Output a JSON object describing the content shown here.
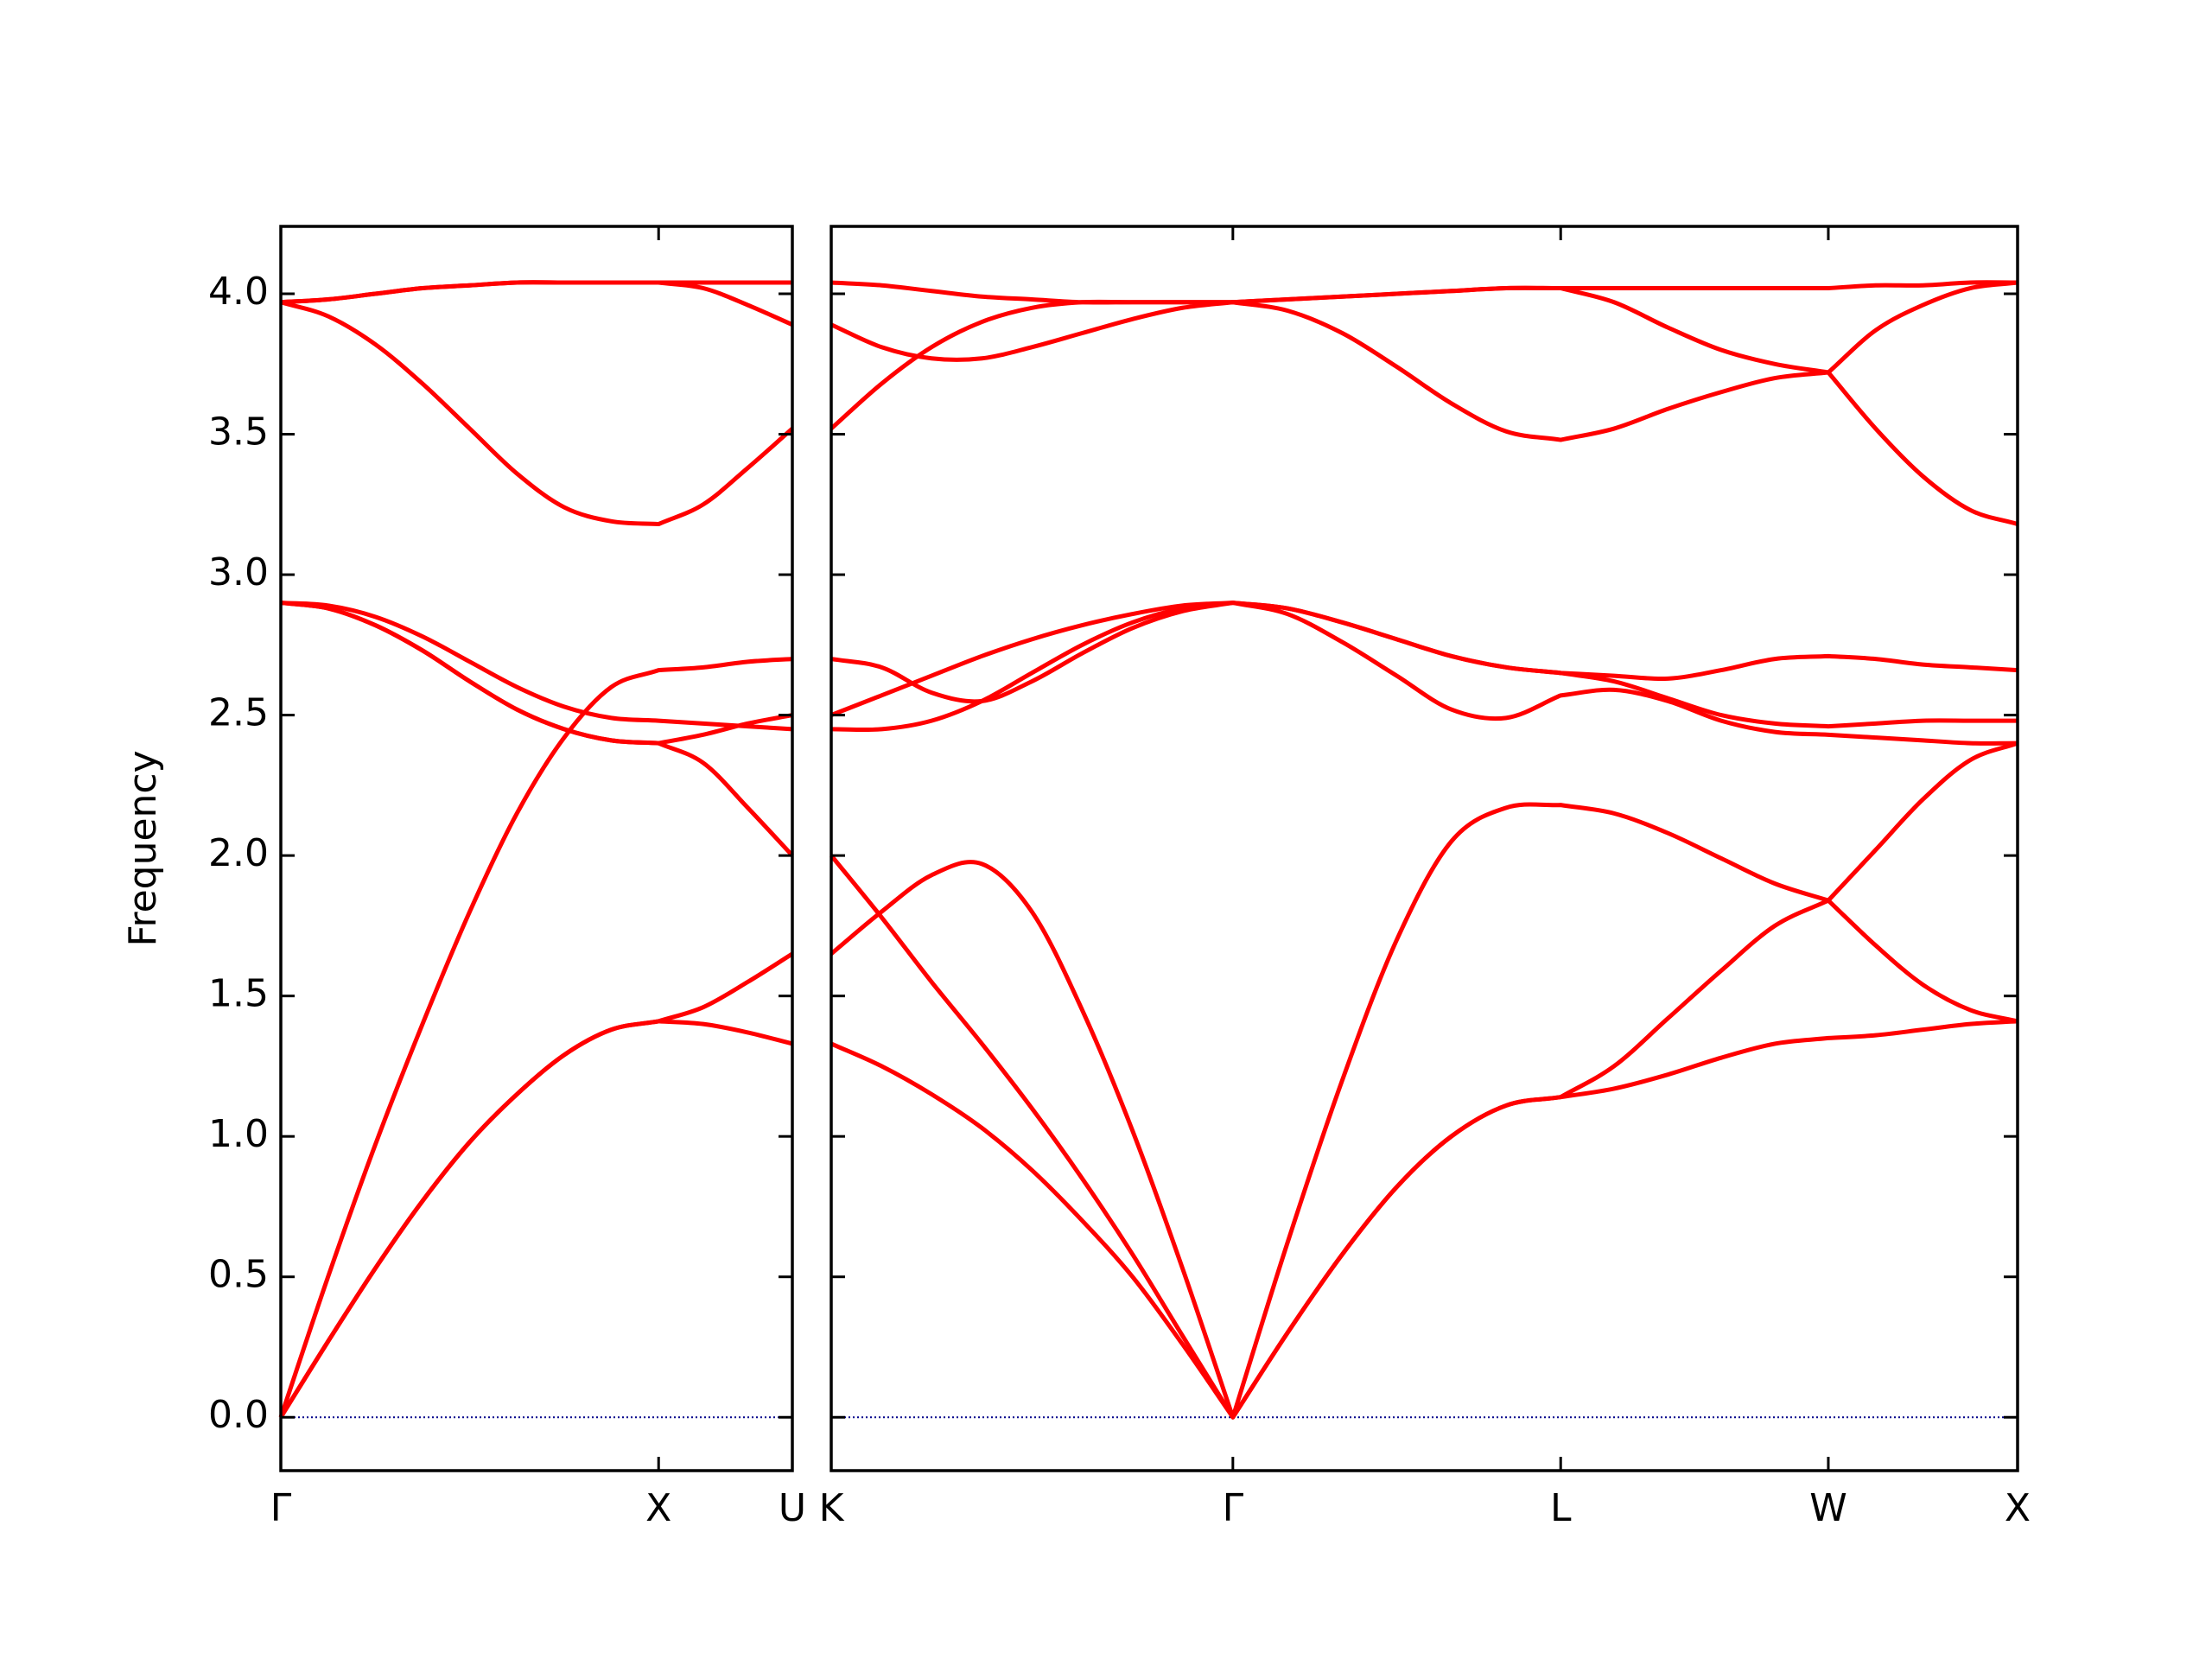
{
  "chart_data": [
    {
      "type": "line",
      "ylabel": "Frequency",
      "color": "#ff0000",
      "hline": 0,
      "hline_color": "#00008b",
      "ylim": [
        -0.19,
        4.24
      ],
      "yticks": [
        {
          "value": 0,
          "label": "0.0"
        },
        0.5,
        {
          "value": 1,
          "label": "1.0"
        },
        1.5,
        {
          "value": 2,
          "label": "2.0"
        },
        2.5,
        {
          "value": 3,
          "label": "3.0"
        },
        3.5,
        {
          "value": 4,
          "label": "4.0"
        }
      ],
      "xlim": [
        0,
        1.354
      ],
      "xticks": [
        {
          "value": 0,
          "label": "Γ"
        },
        {
          "value": 1,
          "label": "X"
        },
        {
          "value": 1.354,
          "label": "U"
        }
      ],
      "x": [
        0,
        0.125,
        0.25,
        0.375,
        0.5,
        0.625,
        0.75,
        0.875,
        1.0,
        1.118,
        1.236,
        1.354
      ],
      "series": [
        {
          "values": [
            0,
            0.27,
            0.53,
            0.77,
            0.98,
            1.15,
            1.29,
            1.38,
            1.41,
            1.4,
            1.37,
            1.33
          ]
        },
        {
          "values": [
            0,
            0.27,
            0.53,
            0.77,
            0.98,
            1.15,
            1.29,
            1.38,
            1.41,
            1.46,
            1.55,
            1.65
          ]
        },
        {
          "values": [
            0,
            0.5,
            0.97,
            1.4,
            1.8,
            2.15,
            2.42,
            2.6,
            2.66,
            2.67,
            2.69,
            2.7
          ]
        },
        {
          "values": [
            2.9,
            2.88,
            2.82,
            2.73,
            2.62,
            2.52,
            2.45,
            2.41,
            2.4,
            2.33,
            2.17,
            2.0
          ]
        },
        {
          "values": [
            2.9,
            2.88,
            2.82,
            2.73,
            2.62,
            2.52,
            2.45,
            2.41,
            2.4,
            2.43,
            2.47,
            2.5
          ]
        },
        {
          "values": [
            2.9,
            2.89,
            2.85,
            2.78,
            2.69,
            2.6,
            2.53,
            2.49,
            2.48,
            2.47,
            2.46,
            2.45
          ]
        },
        {
          "values": [
            3.97,
            3.92,
            3.82,
            3.68,
            3.52,
            3.36,
            3.24,
            3.19,
            3.18,
            3.25,
            3.38,
            3.52
          ]
        },
        {
          "values": [
            3.97,
            3.98,
            4.0,
            4.02,
            4.03,
            4.04,
            4.04,
            4.04,
            4.04,
            4.04,
            4.04,
            4.04
          ]
        },
        {
          "values": [
            3.97,
            3.98,
            4.0,
            4.02,
            4.03,
            4.04,
            4.04,
            4.04,
            4.04,
            4.02,
            3.96,
            3.89
          ]
        }
      ]
    },
    {
      "type": "line",
      "color": "#ff0000",
      "hline": 0,
      "hline_color": "#00008b",
      "ylim": [
        -0.19,
        4.24
      ],
      "yticks": [
        0,
        0.5,
        1,
        1.5,
        2,
        2.5,
        3,
        3.5,
        4
      ],
      "xlim": [
        1.354,
        4.488
      ],
      "xticks": [
        {
          "value": 1.354,
          "label": "K"
        },
        {
          "value": 2.415,
          "label": "Γ"
        },
        {
          "value": 3.281,
          "label": "L"
        },
        {
          "value": 3.988,
          "label": "W"
        },
        {
          "value": 4.488,
          "label": "X"
        }
      ],
      "x": [
        1.354,
        1.487,
        1.619,
        1.752,
        1.884,
        2.017,
        2.15,
        2.282,
        2.415,
        2.559,
        2.704,
        2.848,
        2.992,
        3.137,
        3.281,
        3.422,
        3.564,
        3.705,
        3.847,
        3.988,
        4.113,
        4.238,
        4.363,
        4.488
      ],
      "series": [
        {
          "values": [
            1.33,
            1.25,
            1.15,
            1.03,
            0.88,
            0.7,
            0.5,
            0.26,
            0,
            0.3,
            0.58,
            0.82,
            1.0,
            1.11,
            1.14,
            1.17,
            1.22,
            1.28,
            1.33,
            1.35,
            1.36,
            1.38,
            1.4,
            1.41
          ]
        },
        {
          "values": [
            2.0,
            1.78,
            1.55,
            1.33,
            1.1,
            0.85,
            0.58,
            0.29,
            0,
            0.3,
            0.58,
            0.82,
            1.0,
            1.11,
            1.14,
            1.25,
            1.42,
            1.59,
            1.75,
            1.84,
            1.68,
            1.54,
            1.45,
            1.41
          ]
        },
        {
          "values": [
            1.65,
            1.8,
            1.93,
            1.97,
            1.8,
            1.45,
            1.02,
            0.53,
            0,
            0.62,
            1.2,
            1.7,
            2.05,
            2.17,
            2.18,
            2.15,
            2.08,
            1.99,
            1.9,
            1.84,
            2.02,
            2.2,
            2.34,
            2.4
          ]
        },
        {
          "values": [
            2.7,
            2.67,
            2.58,
            2.55,
            2.62,
            2.72,
            2.81,
            2.87,
            2.9,
            2.86,
            2.76,
            2.64,
            2.52,
            2.49,
            2.57,
            2.59,
            2.55,
            2.48,
            2.44,
            2.43,
            2.42,
            2.41,
            2.4,
            2.4
          ]
        },
        {
          "values": [
            2.5,
            2.57,
            2.64,
            2.71,
            2.77,
            2.82,
            2.86,
            2.89,
            2.9,
            2.88,
            2.83,
            2.77,
            2.71,
            2.67,
            2.65,
            2.62,
            2.56,
            2.5,
            2.47,
            2.46,
            2.47,
            2.48,
            2.48,
            2.48
          ]
        },
        {
          "values": [
            2.45,
            2.45,
            2.48,
            2.55,
            2.65,
            2.75,
            2.83,
            2.88,
            2.9,
            2.88,
            2.83,
            2.77,
            2.71,
            2.67,
            2.65,
            2.64,
            2.63,
            2.66,
            2.7,
            2.71,
            2.7,
            2.68,
            2.67,
            2.66
          ]
        },
        {
          "values": [
            4.04,
            4.03,
            4.01,
            3.99,
            3.98,
            3.97,
            3.97,
            3.97,
            3.97,
            3.98,
            3.99,
            4.0,
            4.01,
            4.02,
            4.02,
            4.02,
            4.02,
            4.02,
            4.02,
            4.02,
            4.03,
            4.03,
            4.04,
            4.04
          ]
        },
        {
          "values": [
            3.89,
            3.81,
            3.77,
            3.77,
            3.81,
            3.86,
            3.91,
            3.95,
            3.97,
            3.94,
            3.86,
            3.74,
            3.61,
            3.51,
            3.48,
            3.52,
            3.59,
            3.65,
            3.7,
            3.72,
            3.87,
            3.96,
            4.02,
            4.04
          ]
        },
        {
          "values": [
            3.52,
            3.68,
            3.81,
            3.9,
            3.95,
            3.97,
            3.97,
            3.97,
            3.97,
            3.98,
            3.99,
            4.0,
            4.01,
            4.02,
            4.02,
            3.97,
            3.88,
            3.8,
            3.75,
            3.72,
            3.52,
            3.35,
            3.23,
            3.18
          ]
        }
      ]
    }
  ]
}
